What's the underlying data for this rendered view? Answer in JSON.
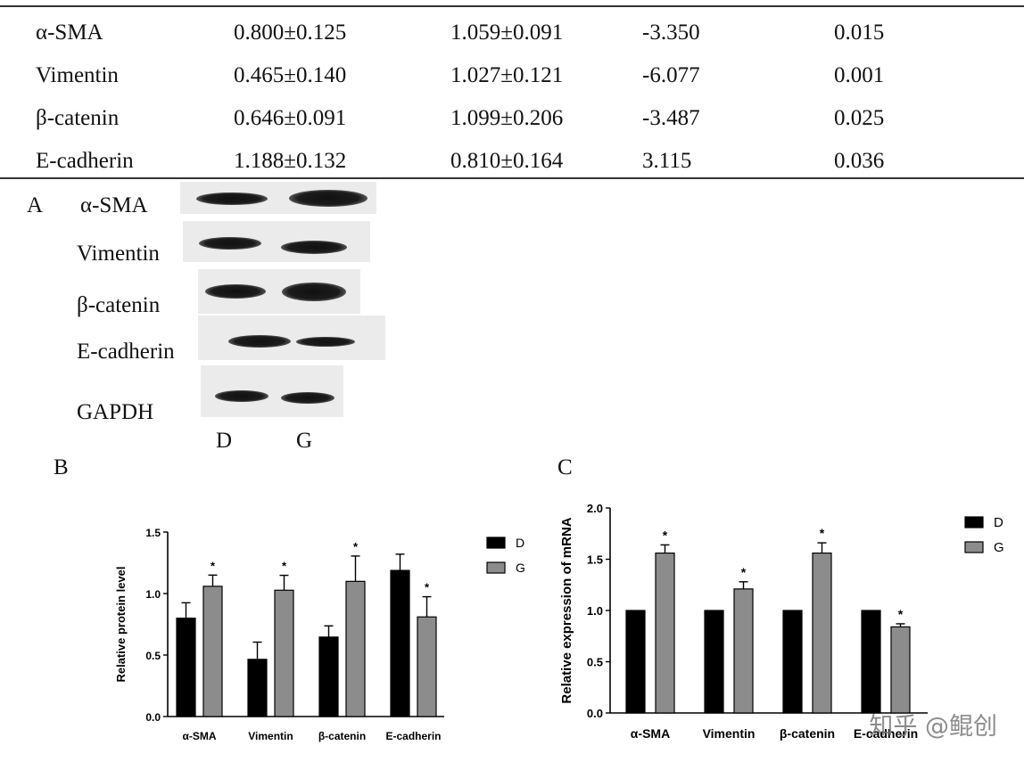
{
  "table": {
    "rows": [
      {
        "gene": "α-SMA",
        "d": "0.800±0.125",
        "g": "1.059±0.091",
        "t": "-3.350",
        "p": "0.015"
      },
      {
        "gene": "Vimentin",
        "d": "0.465±0.140",
        "g": "1.027±0.121",
        "t": "-6.077",
        "p": "0.001"
      },
      {
        "gene": "β-catenin",
        "d": "0.646±0.091",
        "g": "1.099±0.206",
        "t": "-3.487",
        "p": "0.025"
      },
      {
        "gene": "E-cadherin",
        "d": "1.188±0.132",
        "g": "0.810±0.164",
        "t": "3.115",
        "p": "0.036"
      }
    ]
  },
  "blot": {
    "panel_letter": "A",
    "labels": [
      "α-SMA",
      "Vimentin",
      "β-catenin",
      "E-cadherin",
      "GAPDH"
    ],
    "lanes": [
      "D",
      "G"
    ]
  },
  "panel_b_letter": "B",
  "panel_c_letter": "C",
  "chart_data": [
    {
      "type": "bar",
      "categories": [
        "α-SMA",
        "Vimentin",
        "β-catenin",
        "E-cadherin"
      ],
      "ylabel": "Relative protein level",
      "ylim": [
        0,
        1.5
      ],
      "yticks": [
        "0.0",
        "0.5",
        "1.0",
        "1.5"
      ],
      "series": [
        {
          "name": "D",
          "color": "#000000",
          "values": [
            0.8,
            0.465,
            0.646,
            1.188
          ],
          "errors": [
            0.125,
            0.14,
            0.091,
            0.132
          ]
        },
        {
          "name": "G",
          "color": "#8c8c8c",
          "values": [
            1.059,
            1.027,
            1.099,
            0.81
          ],
          "errors": [
            0.091,
            0.121,
            0.206,
            0.164
          ]
        }
      ],
      "significance": "*",
      "legend": "top-right"
    },
    {
      "type": "bar",
      "categories": [
        "α-SMA",
        "Vimentin",
        "β-catenin",
        "E-cadherin"
      ],
      "ylabel": "Relative expression of mRNA",
      "ylim": [
        0,
        2.0
      ],
      "yticks": [
        "0.0",
        "0.5",
        "1.0",
        "1.5",
        "2.0"
      ],
      "series": [
        {
          "name": "D",
          "color": "#000000",
          "values": [
            1.0,
            1.0,
            1.0,
            1.0
          ],
          "errors": [
            0,
            0,
            0,
            0
          ]
        },
        {
          "name": "G",
          "color": "#8c8c8c",
          "values": [
            1.56,
            1.21,
            1.56,
            0.84
          ],
          "errors": [
            0.08,
            0.07,
            0.1,
            0.03
          ]
        }
      ],
      "significance": "*",
      "legend": "top-right"
    }
  ],
  "watermark": "知乎 @鲲创"
}
